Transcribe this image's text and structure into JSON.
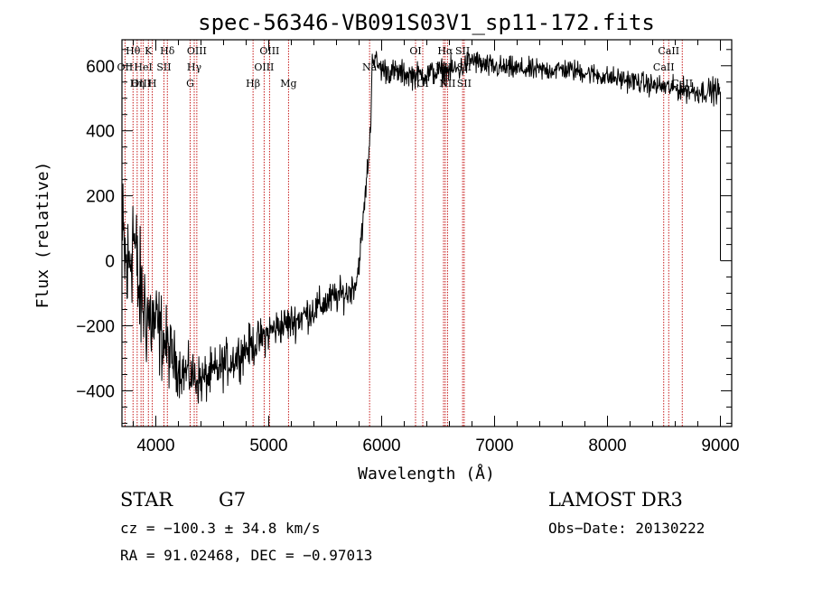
{
  "chart_data": {
    "type": "line",
    "title": "spec-56346-VB091S03V1_sp11-172.fits",
    "xlabel": "Wavelength (Å)",
    "ylabel": "Flux (relative)",
    "xlim": [
      3700,
      9100
    ],
    "ylim": [
      -510,
      680
    ],
    "xticks": [
      {
        "value": 4000,
        "label": "4000"
      },
      {
        "value": 5000,
        "label": "5000"
      },
      {
        "value": 6000,
        "label": "6000"
      },
      {
        "value": 7000,
        "label": "7000"
      },
      {
        "value": 8000,
        "label": "8000"
      },
      {
        "value": 9000,
        "label": "9000"
      }
    ],
    "yticks": [
      {
        "value": -400,
        "label": "−400"
      },
      {
        "value": -200,
        "label": "−200"
      },
      {
        "value": 0,
        "label": "0"
      },
      {
        "value": 200,
        "label": "200"
      },
      {
        "value": 400,
        "label": "400"
      },
      {
        "value": 600,
        "label": "600"
      }
    ],
    "spectrum_trend": [
      [
        3710,
        40
      ],
      [
        3750,
        -50
      ],
      [
        3800,
        100
      ],
      [
        3850,
        -100
      ],
      [
        3900,
        -140
      ],
      [
        3950,
        -180
      ],
      [
        4000,
        -200
      ],
      [
        4050,
        -230
      ],
      [
        4100,
        -270
      ],
      [
        4150,
        -300
      ],
      [
        4200,
        -330
      ],
      [
        4300,
        -350
      ],
      [
        4400,
        -370
      ],
      [
        4500,
        -350
      ],
      [
        4600,
        -320
      ],
      [
        4700,
        -300
      ],
      [
        4800,
        -270
      ],
      [
        4900,
        -250
      ],
      [
        5000,
        -220
      ],
      [
        5100,
        -200
      ],
      [
        5200,
        -190
      ],
      [
        5300,
        -170
      ],
      [
        5400,
        -150
      ],
      [
        5500,
        -130
      ],
      [
        5600,
        -110
      ],
      [
        5700,
        -100
      ],
      [
        5780,
        -60
      ],
      [
        5820,
        60
      ],
      [
        5860,
        220
      ],
      [
        5890,
        350
      ],
      [
        5905,
        420
      ],
      [
        5915,
        630
      ],
      [
        5950,
        610
      ],
      [
        6000,
        590
      ],
      [
        6100,
        580
      ],
      [
        6200,
        575
      ],
      [
        6300,
        570
      ],
      [
        6500,
        580
      ],
      [
        6700,
        590
      ],
      [
        6800,
        620
      ],
      [
        6900,
        600
      ],
      [
        7000,
        595
      ],
      [
        7200,
        590
      ],
      [
        7400,
        585
      ],
      [
        7600,
        590
      ],
      [
        7800,
        580
      ],
      [
        8000,
        565
      ],
      [
        8200,
        555
      ],
      [
        8400,
        540
      ],
      [
        8600,
        530
      ],
      [
        8800,
        520
      ],
      [
        8950,
        525
      ],
      [
        9000,
        520
      ]
    ],
    "spectrum_noise": [
      [
        3700,
        180
      ],
      [
        3950,
        130
      ],
      [
        4200,
        60
      ],
      [
        4600,
        55
      ],
      [
        5000,
        45
      ],
      [
        5600,
        40
      ],
      [
        5900,
        30
      ],
      [
        6500,
        30
      ],
      [
        7500,
        25
      ],
      [
        8500,
        25
      ],
      [
        9000,
        30
      ]
    ],
    "dropout_edge": {
      "x": 9000,
      "low": 0,
      "high": 520
    },
    "spectral_lines": [
      {
        "label": "Hθ",
        "x": 3798,
        "row": 1
      },
      {
        "label": "OII",
        "x": 3727,
        "row": 2
      },
      {
        "label": "OIII",
        "x": 3869,
        "row": 3
      },
      {
        "label": "K",
        "x": 3934,
        "row": 1
      },
      {
        "label": "HeI",
        "x": 3889,
        "row": 2
      },
      {
        "label": "Hη",
        "x": 3835,
        "row": 3
      },
      {
        "label": "SII",
        "x": 4072,
        "row": 2
      },
      {
        "label": "H",
        "x": 3969,
        "row": 3
      },
      {
        "label": "Hδ",
        "x": 4102,
        "row": 1
      },
      {
        "label": "OIII",
        "x": 4363,
        "row": 1
      },
      {
        "label": "Hγ",
        "x": 4340,
        "row": 2
      },
      {
        "label": "G",
        "x": 4304,
        "row": 3
      },
      {
        "label": "OIII",
        "x": 5007,
        "row": 1
      },
      {
        "label": "OIII",
        "x": 4959,
        "row": 2
      },
      {
        "label": "Hβ",
        "x": 4861,
        "row": 3
      },
      {
        "label": "Mg",
        "x": 5175,
        "row": 3
      },
      {
        "label": "Na",
        "x": 5893,
        "row": 2
      },
      {
        "label": "OI",
        "x": 6300,
        "row": 1
      },
      {
        "label": "OI",
        "x": 6364,
        "row": 3
      },
      {
        "label": "Hα",
        "x": 6563,
        "row": 1
      },
      {
        "label": "SII",
        "x": 6717,
        "row": 1
      },
      {
        "label": "NII",
        "x": 6548,
        "row": 2
      },
      {
        "label": "NII",
        "x": 6583,
        "row": 3
      },
      {
        "label": "SII",
        "x": 6731,
        "row": 2
      },
      {
        "label": "SII",
        "x": 6731,
        "row": 3
      },
      {
        "label": "CaII",
        "x": 8542,
        "row": 1
      },
      {
        "label": "CaII",
        "x": 8498,
        "row": 2
      },
      {
        "label": "CaII",
        "x": 8662,
        "row": 3
      }
    ],
    "colors": {
      "spectrum": "#000000",
      "lines": "#c00000",
      "axes": "#000000"
    }
  },
  "info": {
    "class": "STAR",
    "subclass": "G7",
    "survey": "LAMOST DR3",
    "cz": "cz = −100.3 ± 34.8 km/s",
    "obs_date": "Obs−Date: 20130222",
    "coords": "RA =  91.02468, DEC =  −0.97013"
  }
}
